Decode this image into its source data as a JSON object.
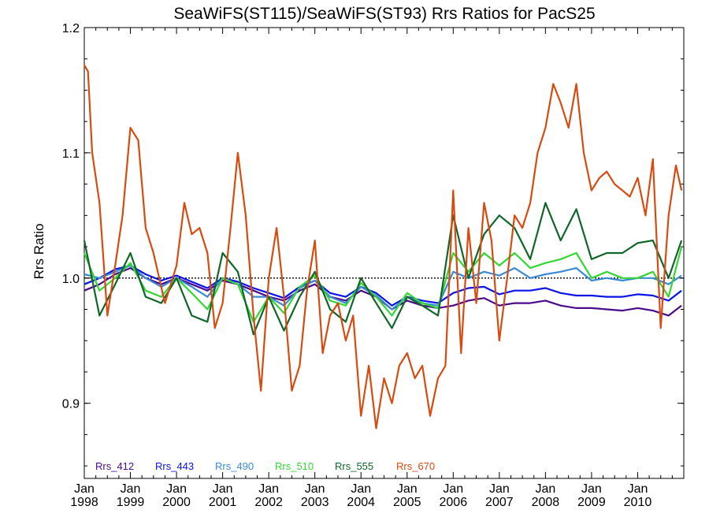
{
  "chart_data": {
    "type": "line",
    "title": "SeaWiFS(ST115)/SeaWiFS(ST93)  Rrs Ratios for PacS25",
    "ylabel": "Rrs Ratio",
    "xlabel": "",
    "xlim": [
      1998.0,
      2011.0
    ],
    "ylim": [
      0.84,
      1.2
    ],
    "yticks": [
      {
        "value": 0.9,
        "label": "0.9"
      },
      {
        "value": 1.0,
        "label": "1.0"
      },
      {
        "value": 1.1,
        "label": "1.1"
      },
      {
        "value": 1.2,
        "label": "1.2"
      }
    ],
    "xticks": [
      {
        "value": 1998,
        "month": "Jan",
        "year": "1998"
      },
      {
        "value": 1999,
        "month": "Jan",
        "year": "1999"
      },
      {
        "value": 2000,
        "month": "Jan",
        "year": "2000"
      },
      {
        "value": 2001,
        "month": "Jan",
        "year": "2001"
      },
      {
        "value": 2002,
        "month": "Jan",
        "year": "2002"
      },
      {
        "value": 2003,
        "month": "Jan",
        "year": "2003"
      },
      {
        "value": 2004,
        "month": "Jan",
        "year": "2004"
      },
      {
        "value": 2005,
        "month": "Jan",
        "year": "2005"
      },
      {
        "value": 2006,
        "month": "Jan",
        "year": "2006"
      },
      {
        "value": 2007,
        "month": "Jan",
        "year": "2007"
      },
      {
        "value": 2008,
        "month": "Jan",
        "year": "2008"
      },
      {
        "value": 2009,
        "month": "Jan",
        "year": "2009"
      },
      {
        "value": 2010,
        "month": "Jan",
        "year": "2010"
      }
    ],
    "reference_line": 1.0,
    "legend_placement": "bottom-left",
    "grid": false,
    "series": [
      {
        "name": "Rrs_412",
        "color": "#4b0a8c",
        "x": [
          1998.0,
          1998.33,
          1998.67,
          1999.0,
          1999.33,
          1999.67,
          2000.0,
          2000.33,
          2000.67,
          2001.0,
          2001.33,
          2001.67,
          2002.0,
          2002.33,
          2002.67,
          2003.0,
          2003.33,
          2003.67,
          2004.0,
          2004.33,
          2004.67,
          2005.0,
          2005.33,
          2005.67,
          2006.0,
          2006.33,
          2006.67,
          2007.0,
          2007.33,
          2007.67,
          2008.0,
          2008.33,
          2008.67,
          2009.0,
          2009.33,
          2009.67,
          2010.0,
          2010.33,
          2010.67,
          2010.95
        ],
        "y": [
          0.99,
          0.995,
          1.003,
          1.008,
          1.0,
          0.995,
          1.0,
          0.995,
          0.99,
          0.998,
          0.995,
          0.99,
          0.985,
          0.982,
          0.99,
          0.995,
          0.985,
          0.982,
          0.99,
          0.985,
          0.975,
          0.982,
          0.978,
          0.976,
          0.978,
          0.982,
          0.984,
          0.978,
          0.98,
          0.98,
          0.982,
          0.978,
          0.976,
          0.976,
          0.975,
          0.974,
          0.976,
          0.974,
          0.97,
          0.978
        ]
      },
      {
        "name": "Rrs_443",
        "color": "#0a14e6",
        "x": [
          1998.0,
          1998.33,
          1998.67,
          1999.0,
          1999.33,
          1999.67,
          2000.0,
          2000.33,
          2000.67,
          2001.0,
          2001.33,
          2001.67,
          2002.0,
          2002.33,
          2002.67,
          2003.0,
          2003.33,
          2003.67,
          2004.0,
          2004.33,
          2004.67,
          2005.0,
          2005.33,
          2005.67,
          2006.0,
          2006.33,
          2006.67,
          2007.0,
          2007.33,
          2007.67,
          2008.0,
          2008.33,
          2008.67,
          2009.0,
          2009.33,
          2009.67,
          2010.0,
          2010.33,
          2010.67,
          2010.95
        ],
        "y": [
          0.995,
          1.0,
          1.007,
          1.01,
          1.003,
          0.998,
          1.002,
          0.997,
          0.992,
          1.0,
          0.997,
          0.992,
          0.988,
          0.984,
          0.993,
          0.998,
          0.988,
          0.985,
          0.993,
          0.988,
          0.978,
          0.985,
          0.982,
          0.98,
          0.988,
          0.992,
          0.993,
          0.987,
          0.99,
          0.99,
          0.992,
          0.988,
          0.986,
          0.986,
          0.985,
          0.985,
          0.987,
          0.986,
          0.982,
          0.99
        ]
      },
      {
        "name": "Rrs_490",
        "color": "#3a8ad6",
        "x": [
          1998.0,
          1998.33,
          1998.67,
          1999.0,
          1999.33,
          1999.67,
          2000.0,
          2000.33,
          2000.67,
          2001.0,
          2001.33,
          2001.67,
          2002.0,
          2002.33,
          2002.67,
          2003.0,
          2003.33,
          2003.67,
          2004.0,
          2004.33,
          2004.67,
          2005.0,
          2005.33,
          2005.67,
          2006.0,
          2006.33,
          2006.67,
          2007.0,
          2007.33,
          2007.67,
          2008.0,
          2008.33,
          2008.67,
          2009.0,
          2009.33,
          2009.67,
          2010.0,
          2010.33,
          2010.67,
          2010.95
        ],
        "y": [
          1.003,
          1.0,
          1.005,
          1.01,
          1.0,
          0.993,
          1.0,
          0.993,
          0.985,
          1.0,
          0.995,
          0.985,
          0.985,
          0.978,
          0.992,
          0.998,
          0.985,
          0.98,
          0.993,
          0.986,
          0.975,
          0.985,
          0.98,
          0.978,
          1.005,
          1.0,
          1.005,
          1.002,
          1.008,
          1.0,
          1.003,
          1.005,
          1.008,
          0.998,
          1.0,
          0.998,
          1.0,
          1.0,
          0.995,
          1.002
        ]
      },
      {
        "name": "Rrs_510",
        "color": "#33d633",
        "x": [
          1998.0,
          1998.33,
          1998.67,
          1999.0,
          1999.33,
          1999.67,
          2000.0,
          2000.33,
          2000.67,
          2001.0,
          2001.33,
          2001.67,
          2002.0,
          2002.33,
          2002.67,
          2003.0,
          2003.33,
          2003.67,
          2004.0,
          2004.33,
          2004.67,
          2005.0,
          2005.33,
          2005.67,
          2006.0,
          2006.33,
          2006.67,
          2007.0,
          2007.33,
          2007.67,
          2008.0,
          2008.33,
          2008.67,
          2009.0,
          2009.33,
          2009.67,
          2010.0,
          2010.33,
          2010.67,
          2010.95
        ],
        "y": [
          1.02,
          0.99,
          1.0,
          1.012,
          0.99,
          0.985,
          1.0,
          0.988,
          0.975,
          1.0,
          0.995,
          0.965,
          0.985,
          0.972,
          0.993,
          1.002,
          0.982,
          0.978,
          0.996,
          0.985,
          0.97,
          0.988,
          0.98,
          0.976,
          1.02,
          1.005,
          1.02,
          1.01,
          1.02,
          1.008,
          1.012,
          1.015,
          1.02,
          1.0,
          1.005,
          1.0,
          1.0,
          1.005,
          0.985,
          1.025
        ]
      },
      {
        "name": "Rrs_555",
        "color": "#0f6628",
        "x": [
          1998.0,
          1998.33,
          1998.67,
          1999.0,
          1999.33,
          1999.67,
          2000.0,
          2000.33,
          2000.67,
          2001.0,
          2001.33,
          2001.67,
          2002.0,
          2002.33,
          2002.67,
          2003.0,
          2003.33,
          2003.67,
          2004.0,
          2004.33,
          2004.67,
          2005.0,
          2005.33,
          2005.67,
          2006.0,
          2006.33,
          2006.67,
          2007.0,
          2007.33,
          2007.67,
          2008.0,
          2008.33,
          2008.67,
          2009.0,
          2009.33,
          2009.67,
          2010.0,
          2010.33,
          2010.67,
          2010.95
        ],
        "y": [
          1.03,
          0.97,
          0.995,
          1.02,
          0.985,
          0.98,
          1.0,
          0.97,
          0.965,
          1.02,
          1.005,
          0.955,
          0.985,
          0.958,
          0.985,
          1.005,
          0.975,
          0.965,
          1.0,
          0.98,
          0.96,
          0.985,
          0.978,
          0.97,
          1.05,
          1.0,
          1.035,
          1.05,
          1.04,
          1.015,
          1.06,
          1.03,
          1.055,
          1.015,
          1.02,
          1.02,
          1.028,
          1.03,
          1.0,
          1.03
        ]
      },
      {
        "name": "Rrs_670",
        "color": "#d94a0f",
        "x": [
          1998.0,
          1998.08,
          1998.17,
          1998.33,
          1998.5,
          1998.67,
          1998.83,
          1999.0,
          1999.17,
          1999.33,
          1999.5,
          1999.75,
          2000.0,
          2000.17,
          2000.33,
          2000.5,
          2000.67,
          2000.83,
          2001.0,
          2001.17,
          2001.33,
          2001.5,
          2001.67,
          2001.83,
          2002.0,
          2002.17,
          2002.33,
          2002.5,
          2002.67,
          2002.83,
          2003.0,
          2003.17,
          2003.33,
          2003.5,
          2003.67,
          2003.83,
          2004.0,
          2004.17,
          2004.33,
          2004.5,
          2004.67,
          2004.83,
          2005.0,
          2005.17,
          2005.33,
          2005.5,
          2005.67,
          2005.83,
          2006.0,
          2006.17,
          2006.33,
          2006.5,
          2006.67,
          2006.83,
          2007.0,
          2007.17,
          2007.33,
          2007.5,
          2007.67,
          2007.83,
          2008.0,
          2008.17,
          2008.33,
          2008.5,
          2008.67,
          2008.83,
          2009.0,
          2009.17,
          2009.33,
          2009.5,
          2009.67,
          2009.83,
          2010.0,
          2010.17,
          2010.33,
          2010.5,
          2010.67,
          2010.83,
          2010.95
        ],
        "y": [
          1.17,
          1.165,
          1.1,
          1.06,
          0.97,
          1.01,
          1.05,
          1.12,
          1.11,
          1.04,
          1.02,
          0.98,
          1.01,
          1.06,
          1.035,
          1.04,
          1.02,
          0.96,
          0.98,
          1.04,
          1.1,
          1.05,
          0.97,
          0.91,
          1.0,
          1.04,
          0.985,
          0.91,
          0.93,
          0.99,
          1.03,
          0.94,
          0.97,
          0.98,
          0.95,
          0.97,
          0.89,
          0.93,
          0.88,
          0.92,
          0.9,
          0.93,
          0.94,
          0.92,
          0.93,
          0.89,
          0.92,
          0.93,
          1.07,
          0.94,
          1.04,
          0.98,
          1.06,
          1.03,
          0.95,
          1.0,
          1.05,
          1.04,
          1.06,
          1.1,
          1.12,
          1.155,
          1.14,
          1.12,
          1.155,
          1.1,
          1.07,
          1.08,
          1.085,
          1.075,
          1.07,
          1.065,
          1.08,
          1.05,
          1.095,
          0.96,
          1.05,
          1.09,
          1.07
        ]
      }
    ]
  }
}
